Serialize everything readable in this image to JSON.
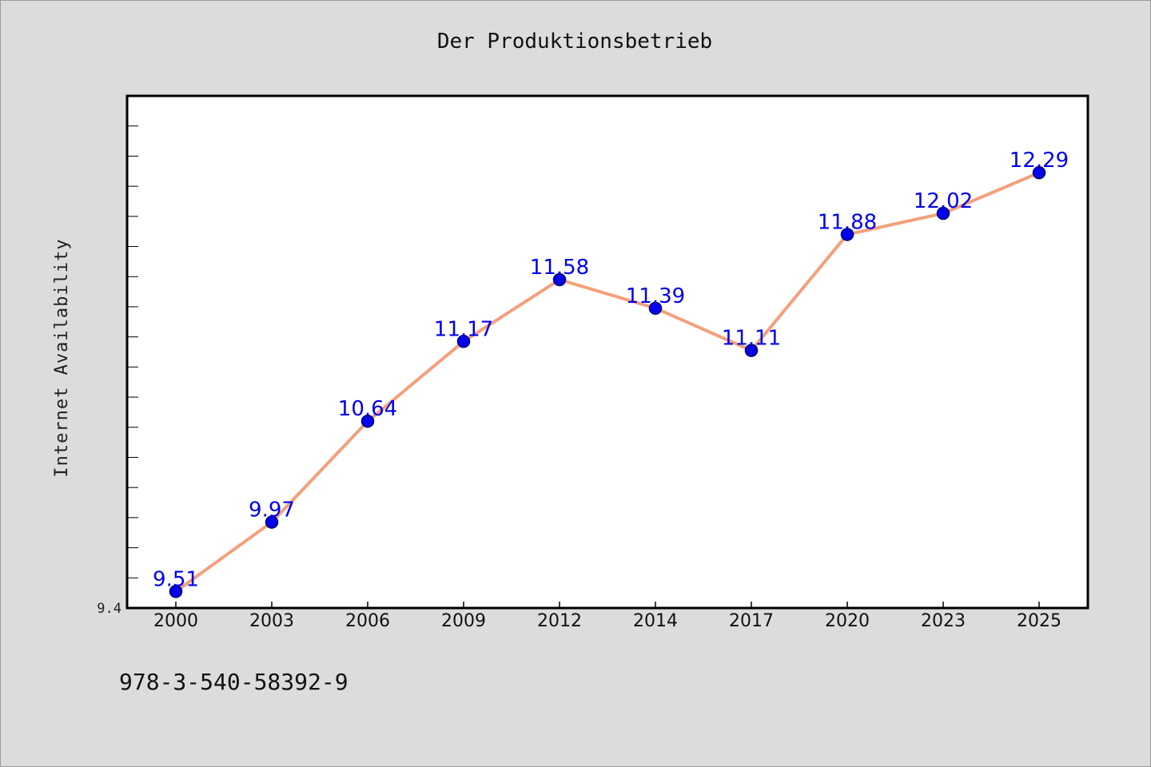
{
  "chart_data": {
    "type": "line",
    "title": "Der Produktionsbetrieb",
    "xlabel": "",
    "ylabel": "Internet Availability",
    "categories": [
      "2000",
      "2003",
      "2006",
      "2009",
      "2012",
      "2014",
      "2017",
      "2020",
      "2023",
      "2025"
    ],
    "series": [
      {
        "values": [
          9.51,
          9.97,
          10.64,
          11.17,
          11.58,
          11.39,
          11.11,
          11.88,
          12.02,
          12.29
        ],
        "labels": [
          "9.51",
          "9.97",
          "10.64",
          "11.17",
          "11.58",
          "11.39",
          "11.11",
          "11.88",
          "12.02",
          "12.29"
        ]
      }
    ],
    "ylim": [
      9.4,
      12.8
    ],
    "ymin_label": "9.4",
    "grid": false,
    "legend": "none",
    "colors": {
      "line": "#f4a07c",
      "marker": "#0000ee",
      "label": "#0000ee",
      "background": "#dcdcdc",
      "plot_background": "#ffffff"
    }
  },
  "footer": {
    "isbn": "978-3-540-58392-9"
  }
}
